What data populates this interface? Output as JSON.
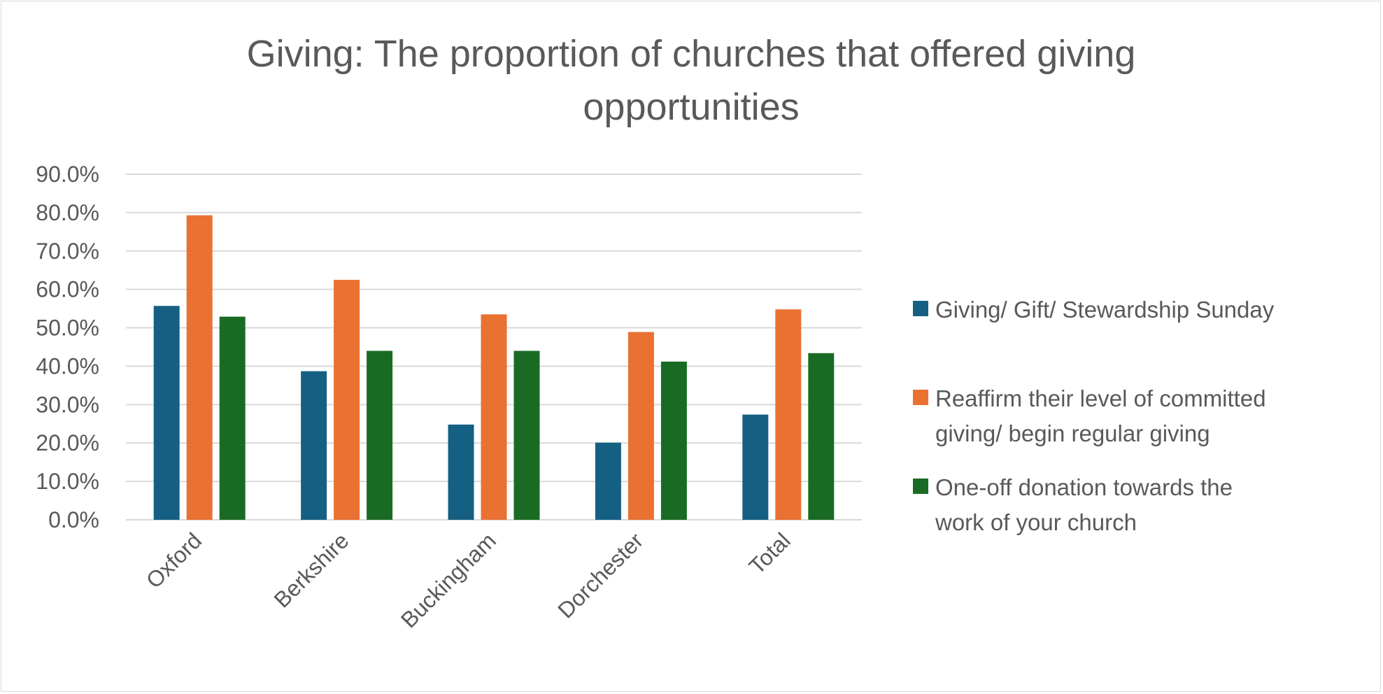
{
  "chart_data": {
    "type": "bar",
    "title": "Giving: The proportion of churches that offered giving opportunities",
    "title_lines": [
      "Giving: The proportion of churches that offered giving",
      "opportunities"
    ],
    "xlabel": "",
    "ylabel": "",
    "ylim": [
      0,
      0.9
    ],
    "y_ticks": [
      0,
      0.1,
      0.2,
      0.3,
      0.4,
      0.5,
      0.6,
      0.7,
      0.8,
      0.9
    ],
    "y_tick_labels": [
      "0.0%",
      "10.0%",
      "20.0%",
      "30.0%",
      "40.0%",
      "50.0%",
      "60.0%",
      "70.0%",
      "80.0%",
      "90.0%"
    ],
    "grid": true,
    "legend_position": "right",
    "categories": [
      "Oxford",
      "Berkshire",
      "Buckingham",
      "Dorchester",
      "Total"
    ],
    "series": [
      {
        "name": "Giving/ Gift/ Stewardship Sunday",
        "legend_lines": [
          "Giving/ Gift/ Stewardship Sunday"
        ],
        "color": "#156082",
        "values": [
          0.557,
          0.387,
          0.248,
          0.201,
          0.274
        ]
      },
      {
        "name": "Reaffirm their level of committed giving/ begin regular giving",
        "legend_lines": [
          "Reaffirm their level of committed",
          "giving/ begin regular giving"
        ],
        "color": "#E97132",
        "values": [
          0.793,
          0.625,
          0.535,
          0.489,
          0.548
        ]
      },
      {
        "name": "One-off donation towards the work of your church",
        "legend_lines": [
          "One-off donation towards the",
          "work of your church"
        ],
        "color": "#196B24",
        "values": [
          0.529,
          0.44,
          0.44,
          0.412,
          0.434
        ]
      }
    ]
  }
}
